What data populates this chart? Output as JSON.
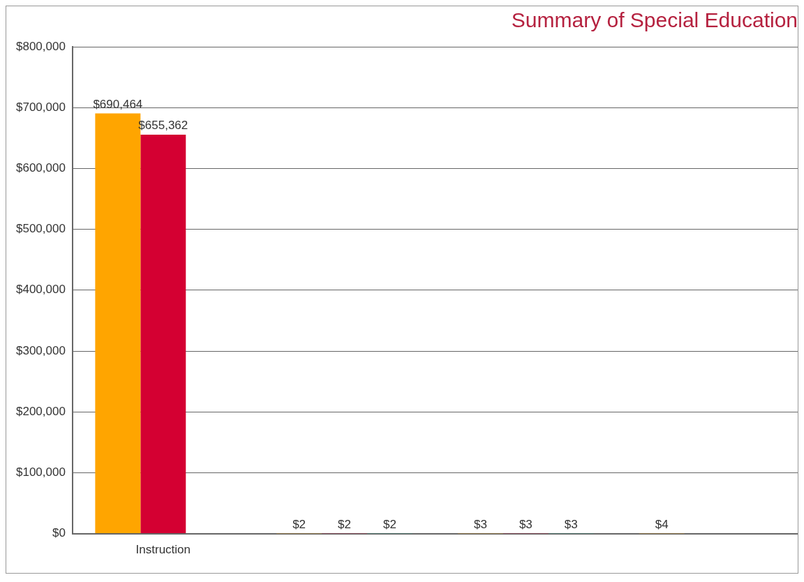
{
  "chart_data": {
    "type": "bar",
    "title": "Summary of Special Education",
    "categories": [
      "Instruction",
      null,
      null,
      null
    ],
    "series": [
      {
        "color": "#ffa500",
        "values": [
          690464,
          2,
          3,
          4
        ],
        "value_labels": [
          "$690,464",
          "$2",
          "$3",
          "$4"
        ]
      },
      {
        "color": "#d40032",
        "values": [
          655362,
          2,
          3,
          0
        ],
        "value_labels": [
          "$655,362",
          "$2",
          "$3",
          null
        ]
      },
      {
        "color": "#1a9b7f",
        "values": [
          0,
          2,
          3,
          null
        ],
        "value_labels": [
          null,
          "$2",
          "$3",
          null
        ]
      }
    ],
    "ylim": [
      0,
      800000
    ],
    "yticks": [
      {
        "value": 0,
        "label": "$0"
      },
      {
        "value": 100000,
        "label": "$100,000"
      },
      {
        "value": 200000,
        "label": "$200,000"
      },
      {
        "value": 300000,
        "label": "$300,000"
      },
      {
        "value": 400000,
        "label": "$400,000"
      },
      {
        "value": 500000,
        "label": "$500,000"
      },
      {
        "value": 600000,
        "label": "$600,000"
      },
      {
        "value": 700000,
        "label": "$700,000"
      },
      {
        "value": 800000,
        "label": "$800,000"
      }
    ],
    "grid": "y",
    "legend": false
  }
}
